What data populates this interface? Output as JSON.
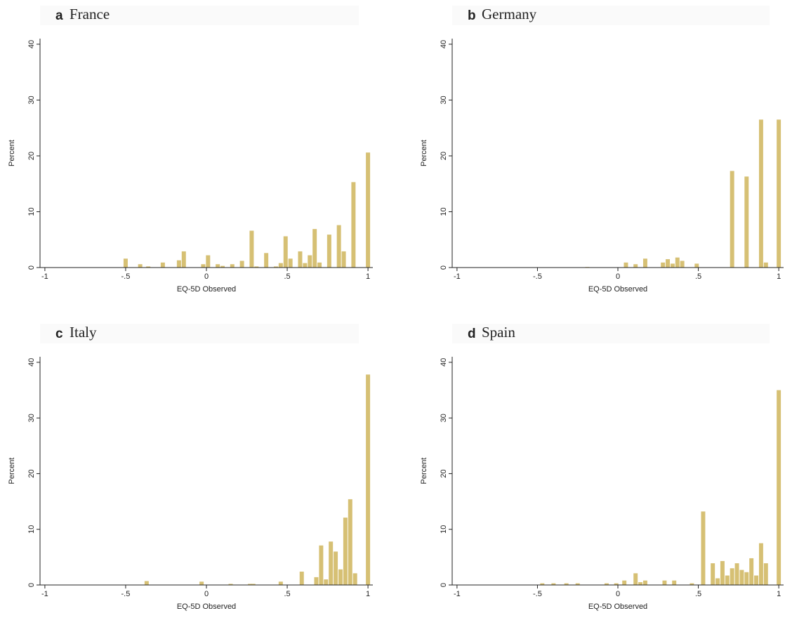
{
  "chart_data": [
    {
      "type": "bar",
      "panel": "a",
      "title": "France",
      "xlabel": "EQ-5D Observed",
      "ylabel": "Percent",
      "color": "#d6c074",
      "x": [
        -0.5,
        -0.41,
        -0.36,
        -0.27,
        -0.17,
        -0.14,
        -0.02,
        0.01,
        0.07,
        0.1,
        0.16,
        0.22,
        0.28,
        0.31,
        0.37,
        0.43,
        0.46,
        0.49,
        0.52,
        0.58,
        0.61,
        0.64,
        0.67,
        0.7,
        0.76,
        0.82,
        0.85,
        0.91,
        1.0
      ],
      "values": [
        1.6,
        0.6,
        0.2,
        0.9,
        1.3,
        2.9,
        0.6,
        2.2,
        0.6,
        0.3,
        0.6,
        1.2,
        6.6,
        0.2,
        2.6,
        0.2,
        0.8,
        5.6,
        1.6,
        2.9,
        0.8,
        2.2,
        6.9,
        0.9,
        5.9,
        7.6,
        2.9,
        15.3,
        20.6
      ],
      "xlim": [
        -1.03,
        1.03
      ],
      "ylim": [
        0,
        41
      ],
      "xticks": [
        -1,
        {
          "value": -0.5,
          "label": "-.5"
        },
        0,
        {
          "value": 0.5,
          "label": ".5"
        },
        1
      ],
      "yticks": [
        0,
        10,
        20,
        30,
        40
      ]
    },
    {
      "type": "bar",
      "panel": "b",
      "title": "Germany",
      "xlabel": "EQ-5D Observed",
      "ylabel": "Percent",
      "color": "#d6c074",
      "x": [
        -0.19,
        0.05,
        0.11,
        0.17,
        0.28,
        0.31,
        0.34,
        0.37,
        0.4,
        0.49,
        0.71,
        0.8,
        0.89,
        0.92,
        1.0
      ],
      "values": [
        0.1,
        0.9,
        0.6,
        1.6,
        0.9,
        1.5,
        0.7,
        1.8,
        1.2,
        0.7,
        17.3,
        16.3,
        26.5,
        0.9,
        26.5
      ],
      "xlim": [
        -1.03,
        1.03
      ],
      "ylim": [
        0,
        41
      ],
      "xticks": [
        -1,
        {
          "value": -0.5,
          "label": "-.5"
        },
        0,
        {
          "value": 0.5,
          "label": ".5"
        },
        1
      ],
      "yticks": [
        0,
        10,
        20,
        30,
        40
      ]
    },
    {
      "type": "bar",
      "panel": "c",
      "title": "Italy",
      "xlabel": "EQ-5D Observed",
      "ylabel": "Percent",
      "color": "#d6c074",
      "x": [
        -0.37,
        -0.03,
        0.15,
        0.27,
        0.29,
        0.46,
        0.59,
        0.68,
        0.71,
        0.74,
        0.77,
        0.8,
        0.83,
        0.86,
        0.89,
        0.92,
        1.0
      ],
      "values": [
        0.7,
        0.6,
        0.2,
        0.2,
        0.2,
        0.6,
        2.4,
        1.4,
        7.1,
        1.0,
        7.8,
        6.0,
        2.8,
        12.1,
        15.4,
        2.1,
        37.8
      ],
      "xlim": [
        -1.03,
        1.03
      ],
      "ylim": [
        0,
        41
      ],
      "xticks": [
        -1,
        {
          "value": -0.5,
          "label": "-.5"
        },
        0,
        {
          "value": 0.5,
          "label": ".5"
        },
        1
      ],
      "yticks": [
        0,
        10,
        20,
        30,
        40
      ]
    },
    {
      "type": "bar",
      "panel": "d",
      "title": "Spain",
      "xlabel": "EQ-5D Observed",
      "ylabel": "Percent",
      "color": "#d6c074",
      "x": [
        -0.47,
        -0.4,
        -0.32,
        -0.25,
        -0.07,
        -0.01,
        0.04,
        0.11,
        0.14,
        0.17,
        0.29,
        0.35,
        0.46,
        0.53,
        0.59,
        0.62,
        0.65,
        0.68,
        0.71,
        0.74,
        0.77,
        0.8,
        0.83,
        0.86,
        0.89,
        0.92,
        1.0
      ],
      "values": [
        0.3,
        0.3,
        0.3,
        0.3,
        0.3,
        0.3,
        0.8,
        2.1,
        0.5,
        0.8,
        0.8,
        0.8,
        0.3,
        13.2,
        3.9,
        1.2,
        4.3,
        1.7,
        3.0,
        3.9,
        2.7,
        2.3,
        4.8,
        1.7,
        7.5,
        3.9,
        35.0
      ],
      "xlim": [
        -1.03,
        1.03
      ],
      "ylim": [
        0,
        41
      ],
      "xticks": [
        -1,
        {
          "value": -0.5,
          "label": "-.5"
        },
        0,
        {
          "value": 0.5,
          "label": ".5"
        },
        1
      ],
      "yticks": [
        0,
        10,
        20,
        30,
        40
      ]
    }
  ]
}
